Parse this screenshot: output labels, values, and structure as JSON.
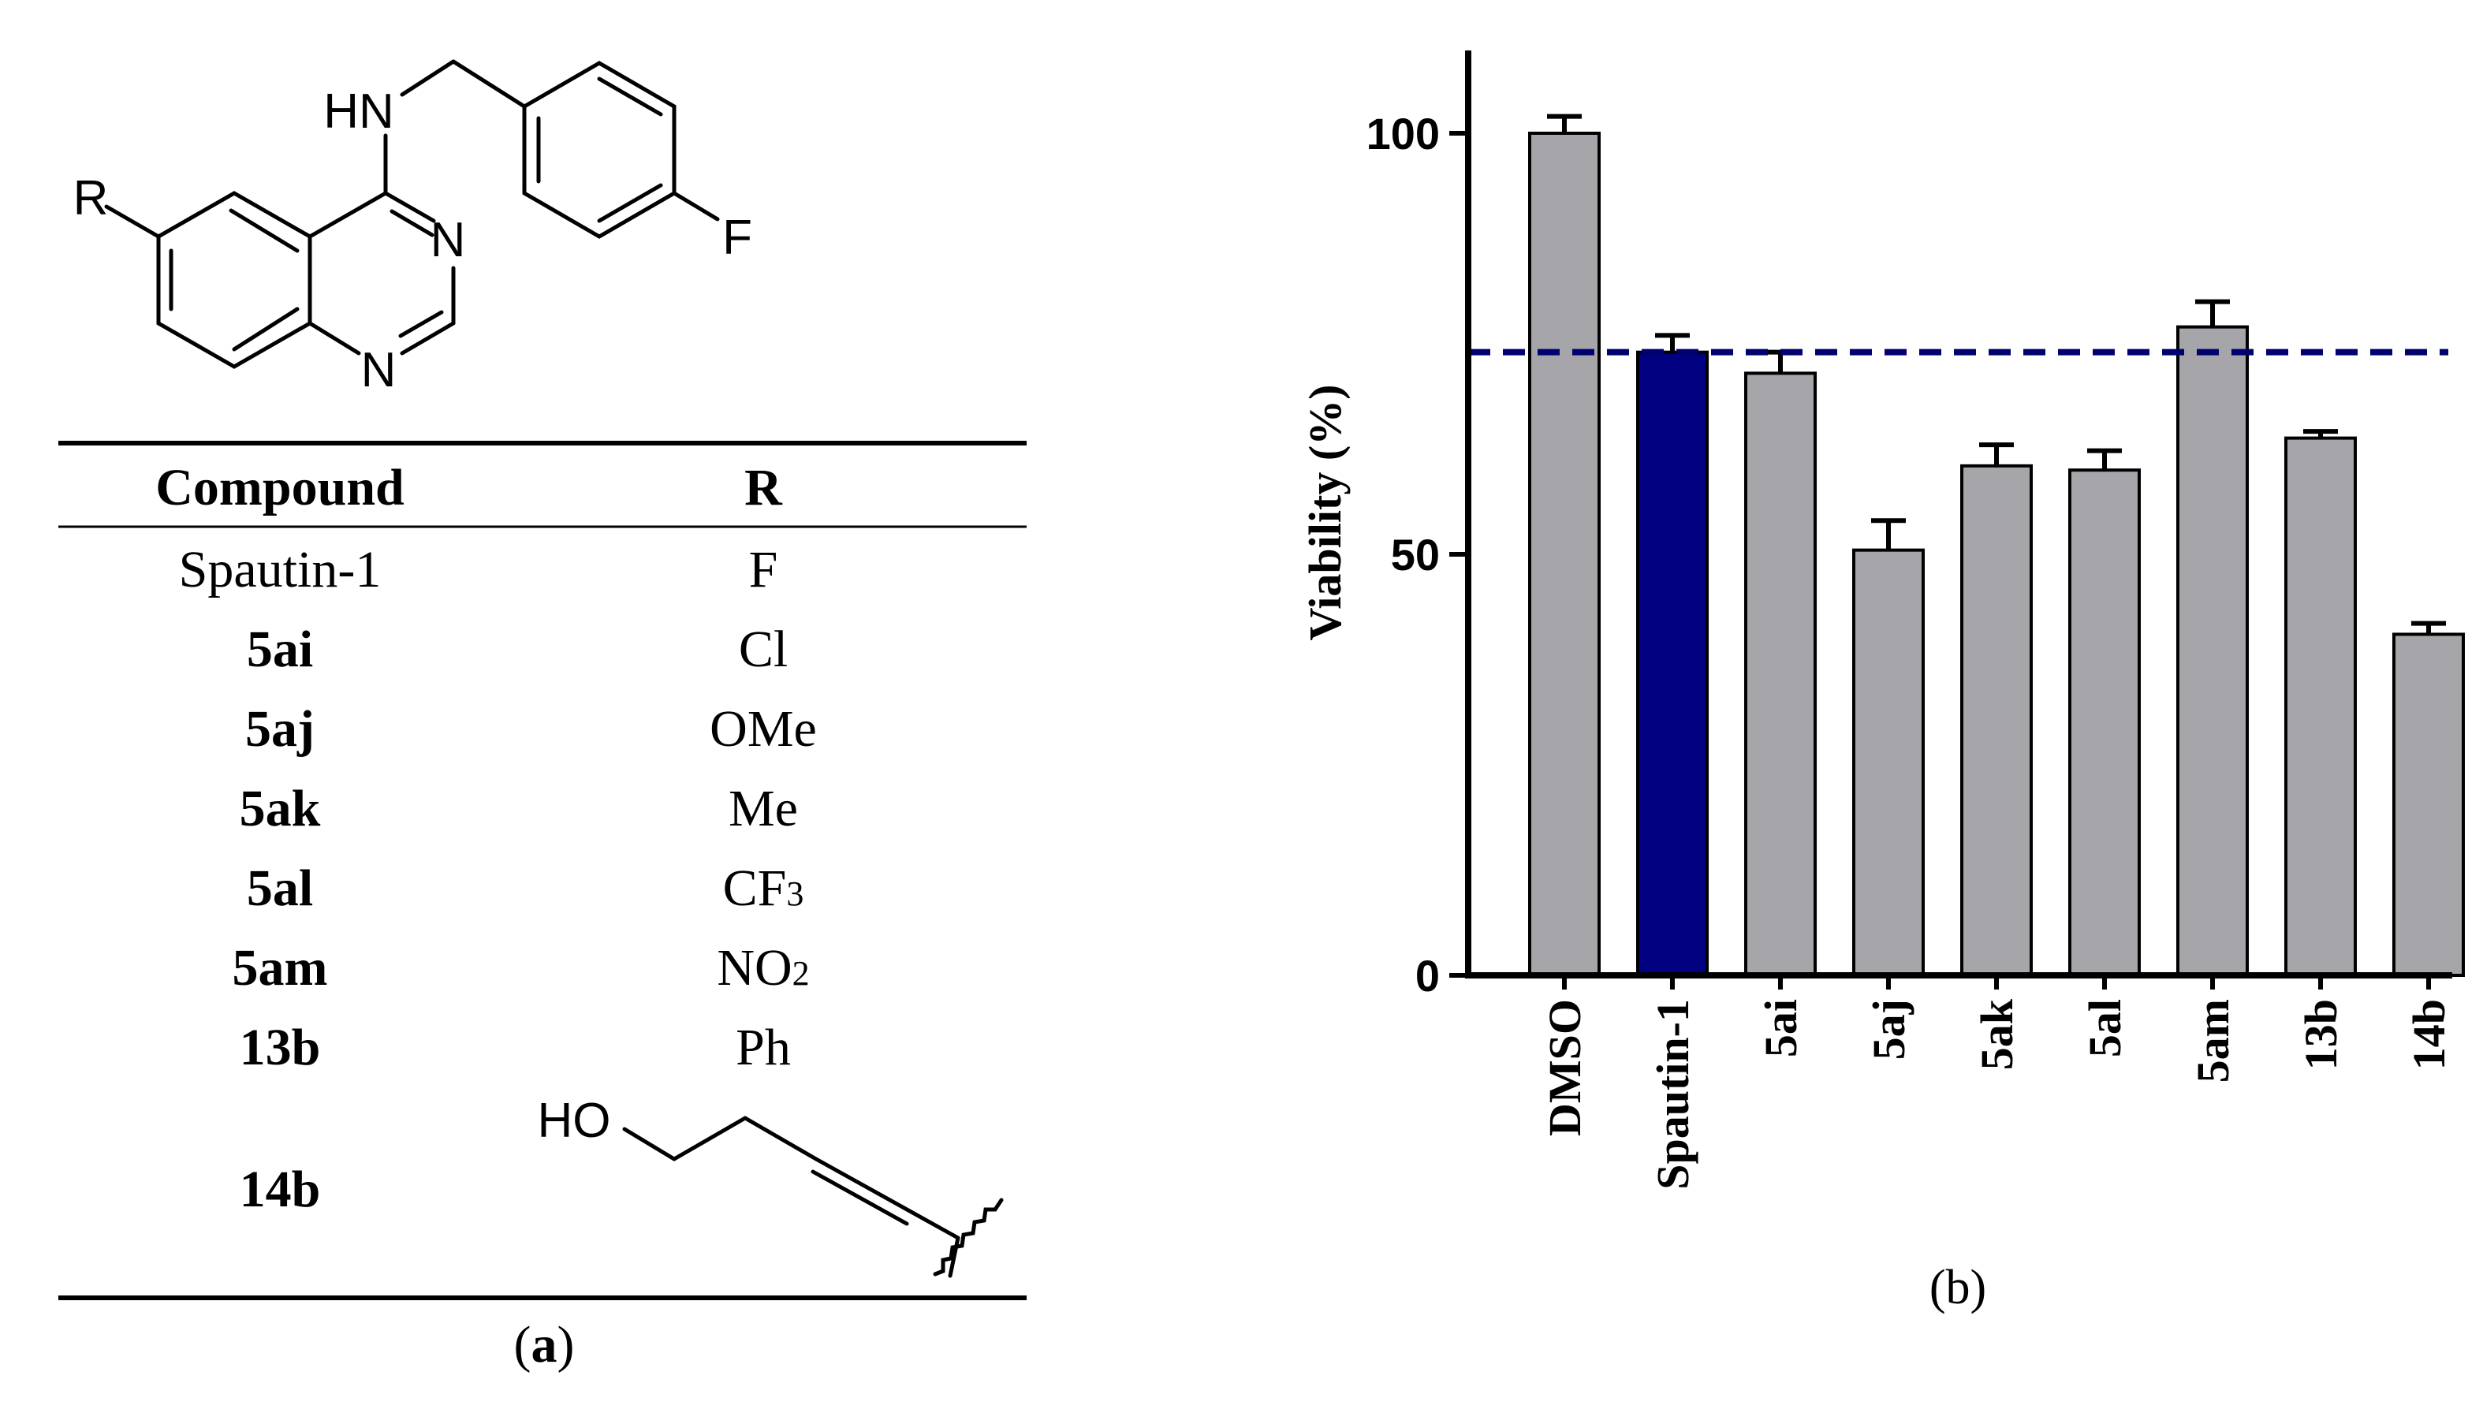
{
  "panel_a": {
    "structure": {
      "label_R": "R",
      "label_HN": "HN",
      "label_N1": "N",
      "label_N2": "N",
      "label_F": "F"
    },
    "table": {
      "headers": [
        "Compound",
        "R"
      ],
      "rows": [
        {
          "compound": "Spautin-1",
          "r": "F",
          "bold": false
        },
        {
          "compound": "5ai",
          "r": "Cl",
          "bold": true
        },
        {
          "compound": "5aj",
          "r": "OMe",
          "bold": true
        },
        {
          "compound": "5ak",
          "r": "Me",
          "bold": true
        },
        {
          "compound": "5al",
          "r_main": "CF",
          "r_sub": "3",
          "bold": true
        },
        {
          "compound": "5am",
          "r_main": "NO",
          "r_sub": "2",
          "bold": true
        },
        {
          "compound": "13b",
          "r": "Ph",
          "bold": true
        },
        {
          "compound": "14b",
          "r_label": "HO",
          "bold": true
        }
      ]
    },
    "caption_open": "(",
    "caption_letter": "a",
    "caption_close": ")"
  },
  "chart_data": {
    "type": "bar",
    "categories": [
      "DMSO",
      "Spautin-1",
      "5ai",
      "5aj",
      "5ak",
      "5al",
      "5am",
      "13b",
      "14b"
    ],
    "values": [
      100,
      74,
      71.5,
      50.5,
      60.5,
      60,
      77,
      63.8,
      40.5
    ],
    "errors": [
      2,
      2,
      2.5,
      3.5,
      2.5,
      2.3,
      3,
      0.8,
      1.3
    ],
    "bar_colors": [
      "#a6a6aa",
      "#000080",
      "#a6a6aa",
      "#a6a6aa",
      "#a6a6aa",
      "#a6a6aa",
      "#a6a6aa",
      "#a6a6aa",
      "#a6a6aa"
    ],
    "reference_line": {
      "value": 74,
      "color": "#00006e",
      "style": "dashed"
    },
    "ylabel": "Viability (%)",
    "ylim": [
      0,
      110
    ],
    "yticks": [
      0,
      50,
      100
    ],
    "grid": false,
    "caption": "(b)"
  }
}
